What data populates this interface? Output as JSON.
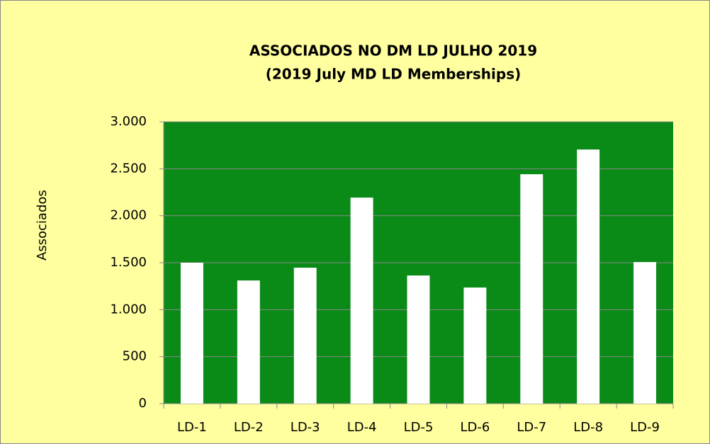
{
  "chart_data": {
    "type": "bar",
    "title": "ASSOCIADOS NO DM LD JULHO 2019",
    "subtitle": "(2019 July MD LD Memberships)",
    "y_label": "Associados",
    "categories": [
      "LD-1",
      "LD-2",
      "LD-3",
      "LD-4",
      "LD-5",
      "LD-6",
      "LD-7",
      "LD-8",
      "LD-9"
    ],
    "values": [
      1500,
      1311,
      1447,
      2193,
      1364,
      1236,
      2442,
      2705,
      1507
    ],
    "color": "#ffffff",
    "plot_background": "#0a8a16",
    "background": "#ffff9f",
    "ylim": [
      0,
      3000
    ],
    "yticks": [
      0,
      500,
      {
        "value": 1000,
        "label": "1.000"
      },
      {
        "value": 1500,
        "label": "1.500"
      },
      {
        "value": 2000,
        "label": "2.000"
      },
      {
        "value": 2500,
        "label": "2.500"
      },
      {
        "value": 3000,
        "label": "3.000"
      }
    ],
    "grid": true
  }
}
